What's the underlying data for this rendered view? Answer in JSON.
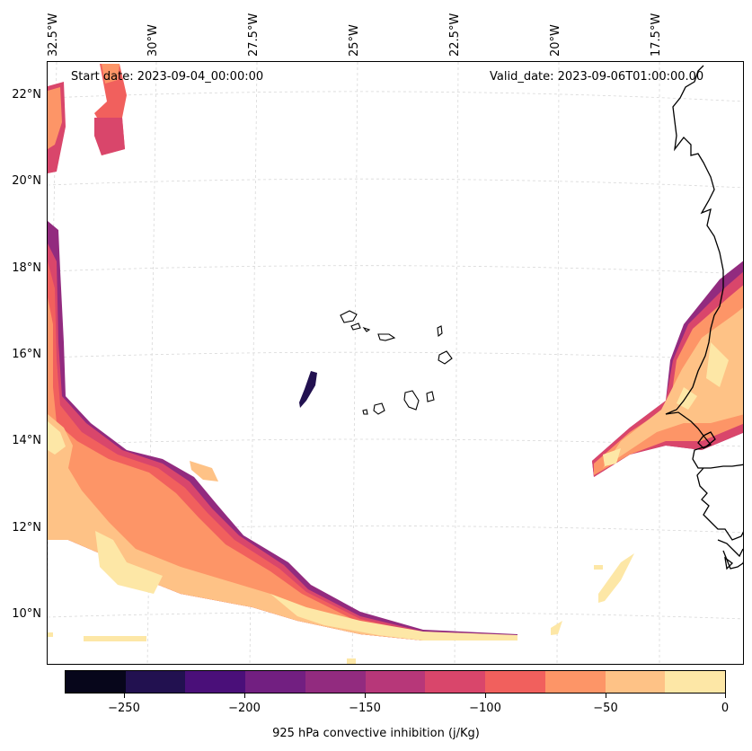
{
  "header": {
    "start_date": "Start date: 2023-09-04_00:00:00",
    "valid_date": "Valid_date: 2023-09-06T01:00:00.00"
  },
  "axes": {
    "longitude_labels": [
      "32.5°W",
      "30°W",
      "27.5°W",
      "25°W",
      "22.5°W",
      "20°W",
      "17.5°W"
    ],
    "latitude_labels": [
      "22°N",
      "20°N",
      "18°N",
      "16°N",
      "14°N",
      "12°N",
      "10°N"
    ]
  },
  "colorbar": {
    "title": "925 hPa convective inhibition (j/Kg)",
    "tick_labels": [
      "−250",
      "−200",
      "−150",
      "−100",
      "−50",
      "0"
    ],
    "levels": [
      -275,
      -250,
      -225,
      -200,
      -175,
      -150,
      -125,
      -100,
      -75,
      -50,
      -25,
      0
    ],
    "colors": [
      "#07061b",
      "#221150",
      "#4a0f79",
      "#721f81",
      "#922b7f",
      "#b73779",
      "#d9466b",
      "#f1605d",
      "#fd9567",
      "#fec286",
      "#fde7a6"
    ]
  },
  "map": {
    "field": "925 hPa convective inhibition",
    "units": "j/Kg",
    "region": "Eastern tropical Atlantic, Cape Verde Islands and West African coast"
  }
}
